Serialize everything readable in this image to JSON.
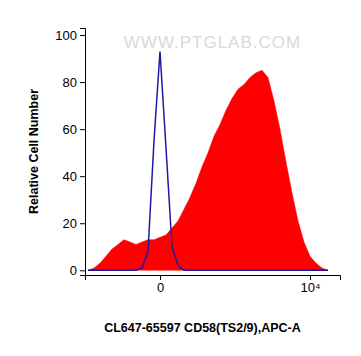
{
  "chart_data": {
    "type": "histogram",
    "x_label": "CL647-65597 CD58(TS2/9),APC-A",
    "y_label": "Relative Cell Number",
    "annotations": [
      "WWW.PTGLAB.COM"
    ],
    "x": [
      -4800,
      -4400,
      -4000,
      -3600,
      -3200,
      -2800,
      -2400,
      -2000,
      -1600,
      -1200,
      -800,
      -400,
      0,
      400,
      800,
      1200,
      1600,
      2000,
      2400,
      2800,
      3200,
      3600,
      4000,
      4400,
      4800,
      5200,
      5600,
      6000,
      6400,
      6800,
      7200,
      7600,
      8000,
      8400,
      8800,
      9200,
      9600,
      10000,
      10400,
      10800,
      11200
    ],
    "series": [
      {
        "type": "area",
        "color": "#ff0000",
        "values": [
          0,
          1,
          3,
          6,
          9,
          11,
          13,
          12,
          11,
          12,
          13,
          13,
          14,
          15,
          18,
          21,
          26,
          31,
          37,
          44,
          50,
          57,
          62,
          68,
          73,
          77,
          79,
          82,
          84,
          85,
          82,
          72,
          60,
          46,
          33,
          21,
          12,
          6,
          3,
          1,
          0
        ]
      },
      {
        "type": "line",
        "color": "#1a1aa6",
        "values": [
          0,
          0,
          0,
          0,
          0,
          0,
          0,
          0,
          0,
          1,
          8,
          55,
          93,
          52,
          10,
          2,
          0,
          0,
          0,
          0,
          0,
          0,
          0,
          0,
          0,
          0,
          0,
          0,
          0,
          0,
          0,
          0,
          0,
          0,
          0,
          0,
          0,
          0,
          0,
          0,
          0
        ]
      }
    ],
    "xlim": [
      -5000,
      12000
    ],
    "xticks": [
      0,
      {
        "value": 10000,
        "label": "10⁴"
      }
    ],
    "ylim": [
      -2,
      103
    ],
    "yticks": [
      0,
      20,
      40,
      60,
      80,
      100
    ],
    "grid": false
  }
}
